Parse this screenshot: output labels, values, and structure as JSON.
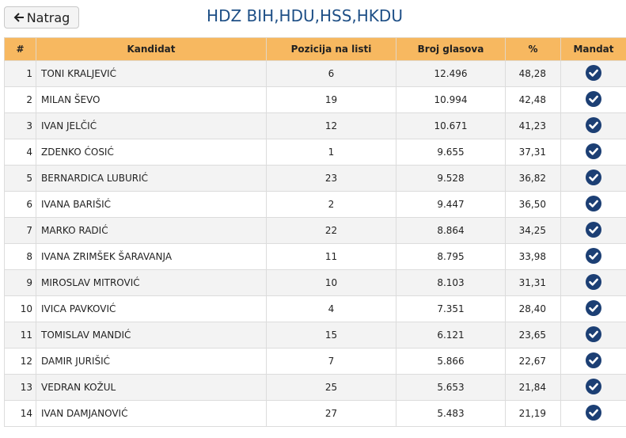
{
  "header": {
    "back_button": "Natrag",
    "title": "HDZ BIH,HDU,HSS,HKDU"
  },
  "table": {
    "columns": [
      "#",
      "Kandidat",
      "Pozicija na listi",
      "Broj glasova",
      "%",
      "Mandat"
    ],
    "rows": [
      [
        "1",
        "TONI KRALJEVIĆ",
        "6",
        "12.496",
        "48,28"
      ],
      [
        "2",
        "MILAN ŠEVO",
        "19",
        "10.994",
        "42,48"
      ],
      [
        "3",
        "IVAN JELČIĆ",
        "12",
        "10.671",
        "41,23"
      ],
      [
        "4",
        "ZDENKO ĆOSIĆ",
        "1",
        "9.655",
        "37,31"
      ],
      [
        "5",
        "BERNARDICA LUBURIĆ",
        "23",
        "9.528",
        "36,82"
      ],
      [
        "6",
        "IVANA BARIŠIĆ",
        "2",
        "9.447",
        "36,50"
      ],
      [
        "7",
        "MARKO RADIĆ",
        "22",
        "8.864",
        "34,25"
      ],
      [
        "8",
        "IVANA ZRIMŠEK ŠARAVANJA",
        "11",
        "8.795",
        "33,98"
      ],
      [
        "9",
        "MIROSLAV MITROVIĆ",
        "10",
        "8.103",
        "31,31"
      ],
      [
        "10",
        "IVICA PAVKOVIĆ",
        "4",
        "7.351",
        "28,40"
      ],
      [
        "11",
        "TOMISLAV MANDIĆ",
        "15",
        "6.121",
        "23,65"
      ],
      [
        "12",
        "DAMIR JURIŠIĆ",
        "7",
        "5.866",
        "22,67"
      ],
      [
        "13",
        "VEDRAN KOŽUL",
        "25",
        "5.653",
        "21,84"
      ],
      [
        "14",
        "IVAN DAMJANOVIĆ",
        "27",
        "5.483",
        "21,19"
      ]
    ]
  }
}
